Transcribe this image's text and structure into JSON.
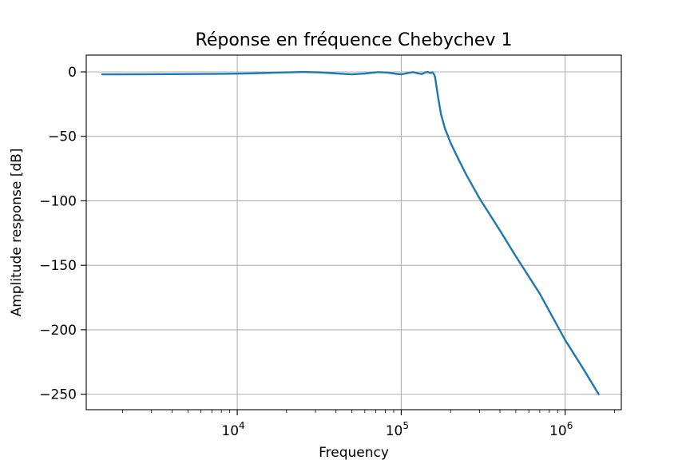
{
  "chart_data": {
    "type": "line",
    "title": "Réponse en fréquence Chebychev 1",
    "xlabel": "Frequency",
    "ylabel": "Amplitude response [dB]",
    "xscale": "log",
    "xlim": [
      1200,
      2200000
    ],
    "ylim": [
      -262,
      13
    ],
    "grid": true,
    "line_color": "#1f77b4",
    "x_ticks": [
      {
        "value": 10000,
        "base": "10",
        "exp": "4"
      },
      {
        "value": 100000,
        "base": "10",
        "exp": "5"
      },
      {
        "value": 1000000,
        "base": "10",
        "exp": "6"
      }
    ],
    "y_ticks": [
      {
        "value": 0,
        "label": "0"
      },
      {
        "value": -50,
        "label": "−50"
      },
      {
        "value": -100,
        "label": "−100"
      },
      {
        "value": -150,
        "label": "−150"
      },
      {
        "value": -200,
        "label": "−200"
      },
      {
        "value": -250,
        "label": "−250"
      }
    ],
    "series": [
      {
        "x": [
          1500,
          2000,
          3000,
          5000,
          8000,
          12000,
          18000,
          25000,
          32000,
          40000,
          50000,
          60000,
          72000,
          82000,
          92000,
          100000,
          110000,
          118000,
          126000,
          134000,
          140000,
          145000,
          150000,
          155000,
          158000,
          161000,
          163000,
          168000,
          175000,
          185000,
          200000,
          220000,
          250000,
          300000,
          400000,
          500000,
          700000,
          1000000,
          1300000,
          1600000
        ],
        "y": [
          -1.9,
          -1.9,
          -1.8,
          -1.7,
          -1.5,
          -1.2,
          -0.5,
          -0.1,
          -0.4,
          -1.2,
          -1.9,
          -1.3,
          -0.2,
          -0.5,
          -1.4,
          -1.9,
          -0.9,
          -0.2,
          -1.1,
          -1.7,
          -0.4,
          -0.1,
          -0.9,
          -0.3,
          -1.5,
          -4,
          -9,
          -20,
          -33,
          -44,
          -55,
          -66,
          -80,
          -98,
          -123,
          -143,
          -172,
          -208,
          -231,
          -250
        ]
      }
    ]
  }
}
